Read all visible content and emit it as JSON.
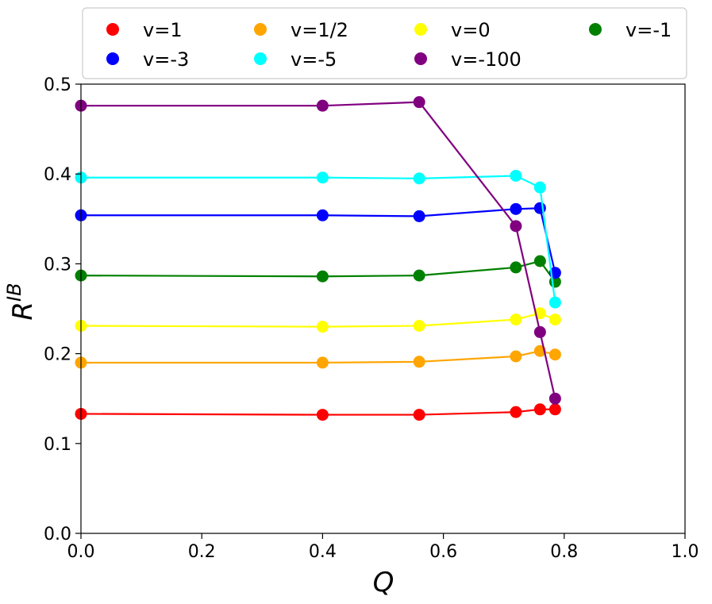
{
  "chart_data": {
    "type": "line",
    "title": "",
    "xlabel": "Q",
    "ylabel": {
      "base": "R",
      "superscript": "IB"
    },
    "xlim": [
      0.0,
      1.0
    ],
    "ylim": [
      0.0,
      0.5
    ],
    "xticks": [
      0.0,
      0.2,
      0.4,
      0.6,
      0.8,
      1.0
    ],
    "xtick_labels": [
      "0.0",
      "0.2",
      "0.4",
      "0.6",
      "0.8",
      "1.0"
    ],
    "yticks": [
      0.0,
      0.1,
      0.2,
      0.3,
      0.4,
      0.5
    ],
    "ytick_labels": [
      "0.0",
      "0.1",
      "0.2",
      "0.3",
      "0.4",
      "0.5"
    ],
    "grid": false,
    "legend_position": "top, outside plot, 4 columns",
    "x": [
      0.0,
      0.4,
      0.56,
      0.72,
      0.76,
      0.785
    ],
    "series": [
      {
        "name": "v=1",
        "color": "#ff0000",
        "values": [
          0.133,
          0.132,
          0.132,
          0.135,
          0.138,
          0.138
        ]
      },
      {
        "name": "v=1/2",
        "color": "#ffa500",
        "values": [
          0.19,
          0.19,
          0.191,
          0.197,
          0.203,
          0.199
        ]
      },
      {
        "name": "v=0",
        "color": "#ffff00",
        "values": [
          0.231,
          0.23,
          0.231,
          0.238,
          0.245,
          0.238
        ]
      },
      {
        "name": "v=-1",
        "color": "#008000",
        "values": [
          0.287,
          0.286,
          0.287,
          0.296,
          0.303,
          0.28
        ]
      },
      {
        "name": "v=-3",
        "color": "#0000ff",
        "values": [
          0.354,
          0.354,
          0.353,
          0.361,
          0.362,
          0.29
        ]
      },
      {
        "name": "v=-5",
        "color": "#00ffff",
        "values": [
          0.396,
          0.396,
          0.395,
          0.398,
          0.385,
          0.257
        ]
      },
      {
        "name": "v=-100",
        "color": "#800080",
        "values": [
          0.476,
          0.476,
          0.48,
          0.342,
          0.224,
          0.15
        ]
      }
    ],
    "legend_order": [
      "v=1",
      "v=1/2",
      "v=0",
      "v=-1",
      "v=-3",
      "v=-5",
      "v=-100"
    ]
  }
}
